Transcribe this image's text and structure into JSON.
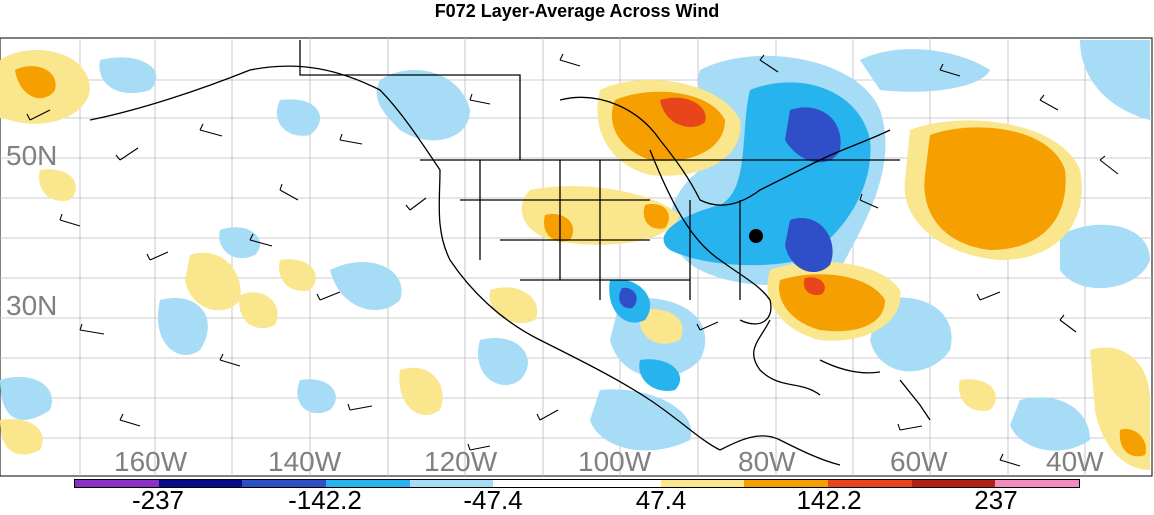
{
  "title": "F072 Layer-Average Across Wind",
  "lat_labels": [
    "50N",
    "30N"
  ],
  "lon_labels": [
    "160W",
    "140W",
    "120W",
    "100W",
    "80W",
    "60W",
    "40W"
  ],
  "colorbar": {
    "colors": [
      "#8b2fc9",
      "#0a0a8c",
      "#2f4fc8",
      "#27b4ee",
      "#a6dcf5",
      "#ffffff",
      "#ffffff",
      "#fae68c",
      "#f5a000",
      "#e8451a",
      "#b0211a",
      "#f08cbe"
    ],
    "labels": [
      "-237",
      "-142.2",
      "-47.4",
      "47.4",
      "142.2",
      "237"
    ]
  },
  "map_colors": {
    "light_blue": "#a6dcf5",
    "mid_blue": "#27b4ee",
    "dark_blue": "#2f4fc8",
    "light_orange": "#fae68c",
    "orange": "#f5a000",
    "red_orange": "#e8451a"
  }
}
